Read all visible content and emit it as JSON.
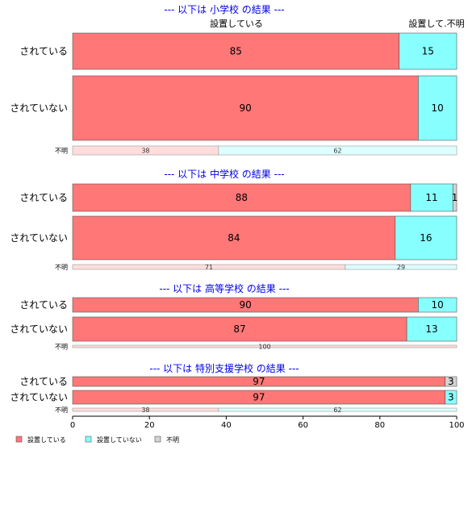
{
  "chart_data": {
    "type": "bar",
    "orientation": "horizontal",
    "stacked": true,
    "percent": true,
    "column_headers": [
      "設置している",
      "設置して.不明"
    ],
    "xlim": [
      0,
      100
    ],
    "x_ticks": [
      "0",
      "20",
      "40",
      "60",
      "80",
      "100"
    ],
    "legend": {
      "placement": "bottom-left",
      "items": [
        {
          "label": "設置している",
          "color": "#ff7777"
        },
        {
          "label": "設置していない",
          "color": "#88ffff"
        },
        {
          "label": "不明",
          "color": "#d3d3d3"
        }
      ]
    },
    "panels": [
      {
        "title": "--- 以下は 小学校 の結果 ---",
        "rows": [
          {
            "label": "されている",
            "values": [
              85,
              15,
              0
            ],
            "value_labels": [
              "85",
              "15",
              ""
            ]
          },
          {
            "label": "されていない",
            "values": [
              90,
              10,
              0
            ],
            "value_labels": [
              "90",
              "10",
              ""
            ]
          },
          {
            "label": "不明",
            "small": true,
            "values": [
              38,
              62,
              0
            ],
            "value_labels": [
              "38",
              "62",
              ""
            ]
          }
        ]
      },
      {
        "title": "--- 以下は 中学校 の結果 ---",
        "rows": [
          {
            "label": "されている",
            "values": [
              88,
              11,
              1
            ],
            "value_labels": [
              "88",
              "11",
              "1"
            ]
          },
          {
            "label": "されていない",
            "values": [
              84,
              16,
              0
            ],
            "value_labels": [
              "84",
              "16",
              ""
            ]
          },
          {
            "label": "不明",
            "small": true,
            "values": [
              71,
              29,
              0
            ],
            "value_labels": [
              "71",
              "29",
              ""
            ]
          }
        ]
      },
      {
        "title": "--- 以下は 高等学校 の結果 ---",
        "rows": [
          {
            "label": "されている",
            "values": [
              90,
              10,
              0
            ],
            "value_labels": [
              "90",
              "10",
              ""
            ]
          },
          {
            "label": "されていない",
            "values": [
              87,
              13,
              0
            ],
            "value_labels": [
              "87",
              "13",
              ""
            ]
          },
          {
            "label": "不明",
            "small": true,
            "values": [
              100,
              0,
              0
            ],
            "value_labels": [
              "100",
              "",
              ""
            ]
          }
        ]
      },
      {
        "title": "--- 以下は 特別支援学校 の結果 ---",
        "rows": [
          {
            "label": "されている",
            "values": [
              97,
              0,
              3
            ],
            "value_labels": [
              "97",
              "",
              "3"
            ]
          },
          {
            "label": "されていない",
            "values": [
              97,
              3,
              0
            ],
            "value_labels": [
              "97",
              "3",
              ""
            ]
          },
          {
            "label": "不明",
            "small": true,
            "values": [
              38,
              62,
              0
            ],
            "value_labels": [
              "38",
              "62",
              ""
            ]
          }
        ]
      }
    ]
  }
}
